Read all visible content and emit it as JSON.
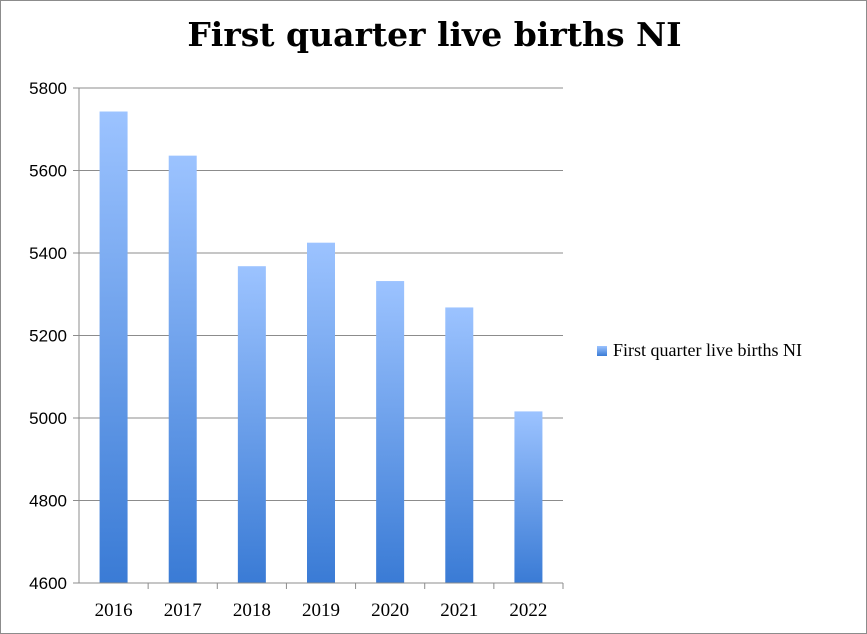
{
  "chart_data": {
    "type": "bar",
    "title": "First quarter live births NI",
    "categories": [
      "2016",
      "2017",
      "2018",
      "2019",
      "2020",
      "2021",
      "2022"
    ],
    "series": [
      {
        "name": "First quarter live births NI",
        "values": [
          5743,
          5636,
          5368,
          5425,
          5332,
          5268,
          5016
        ]
      }
    ],
    "ylim": [
      4600,
      5800
    ],
    "yticks": [
      "4600",
      "4800",
      "5000",
      "5200",
      "5400",
      "5600",
      "5800"
    ],
    "grid": true,
    "legend_position": "right",
    "colors": {
      "bar_top": "#9cc3ff",
      "bar_bottom": "#3a7bd5",
      "grid": "#8c8c8c"
    }
  }
}
